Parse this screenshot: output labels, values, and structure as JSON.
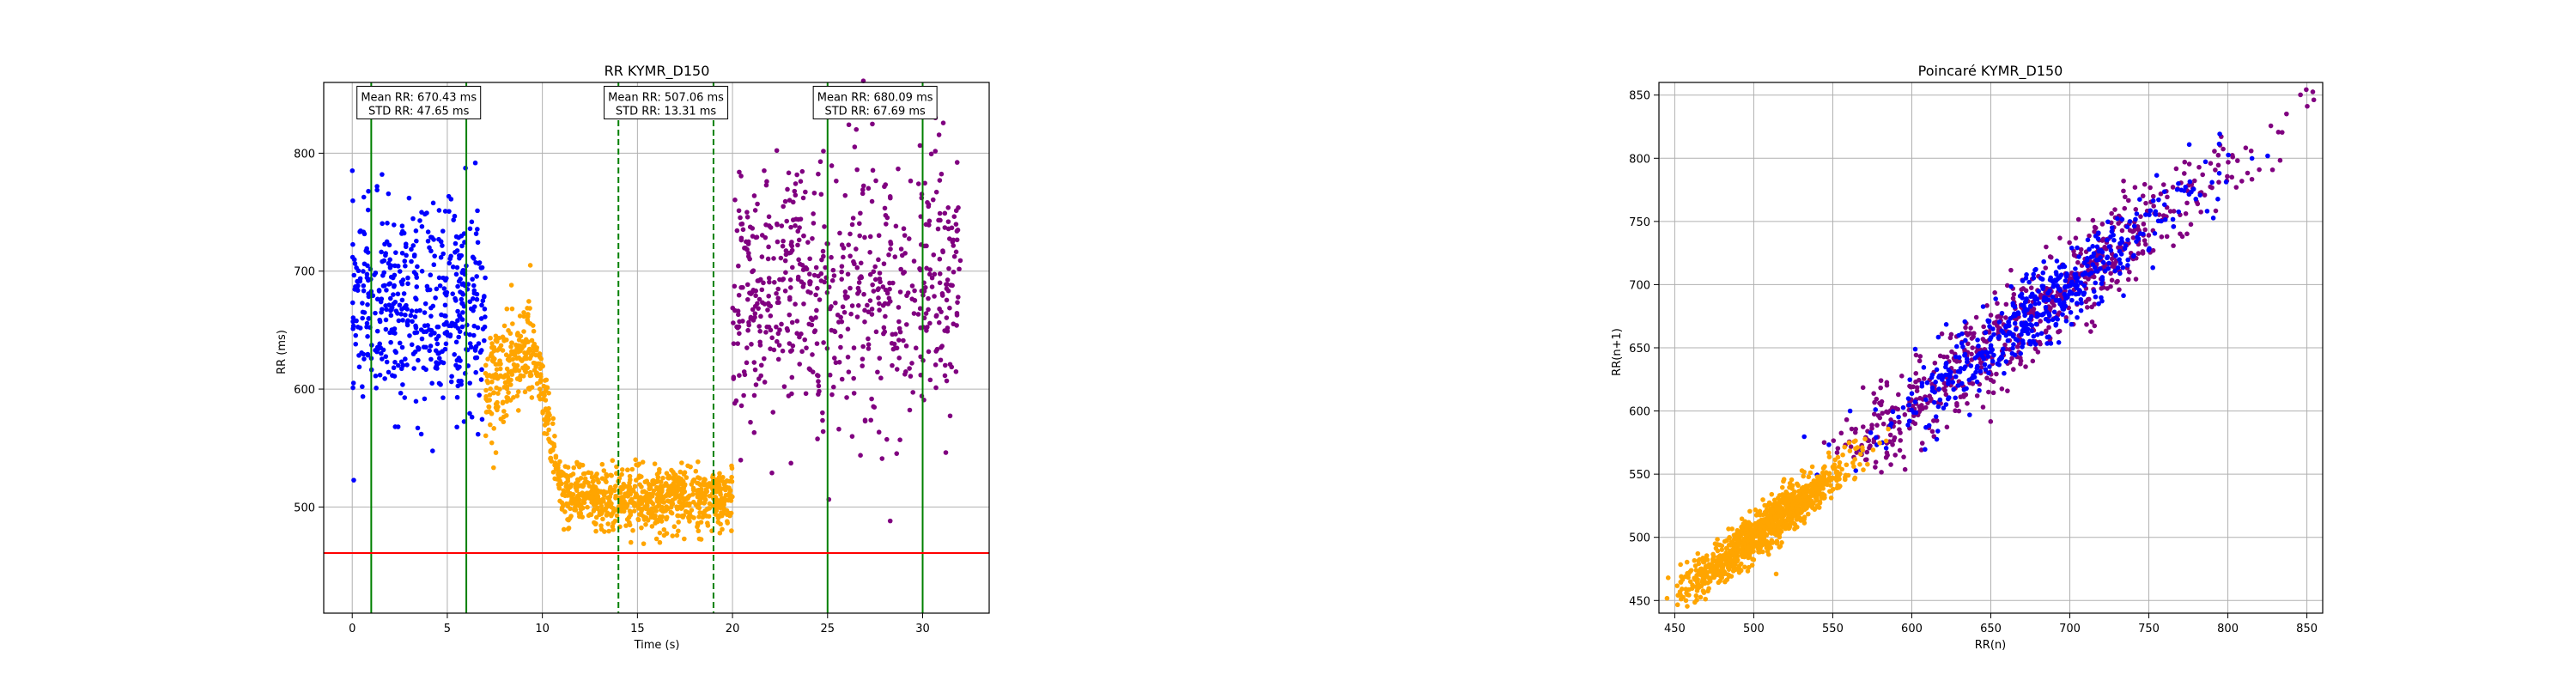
{
  "chart_data": [
    {
      "type": "scatter",
      "title": "RR KYMR_D150",
      "xlabel": "Time (s)",
      "ylabel": "RR (ms)",
      "xlim": [
        -1.5,
        33.5
      ],
      "ylim": [
        410,
        860
      ],
      "xticks": [
        "0",
        "5",
        "10",
        "15",
        "20",
        "25",
        "30"
      ],
      "yticks": [
        "500",
        "600",
        "700",
        "800"
      ],
      "grid": true,
      "colors": {
        "baseline": "#0000ff",
        "exposure": "#ffa500",
        "recovery": "#800080",
        "window": "#008000",
        "threshold": "#ff0000"
      },
      "series": [
        {
          "color": "#0000ff",
          "t_range": [
            0,
            7
          ],
          "mean": 670,
          "std": 47
        },
        {
          "color": "#ffa500",
          "t_range": [
            7,
            20
          ],
          "segments": [
            [
              7,
              9.5,
              610,
              660
            ],
            [
              9.5,
              11,
              650,
              510
            ],
            [
              11,
              20,
              507,
              507
            ]
          ]
        },
        {
          "color": "#800080",
          "t_range": [
            20,
            32
          ],
          "mean": 680,
          "std": 68
        }
      ],
      "vlines": [
        {
          "x": 1,
          "style": "solid",
          "color": "#008000"
        },
        {
          "x": 6,
          "style": "solid",
          "color": "#008000"
        },
        {
          "x": 14,
          "style": "dashed",
          "color": "#008000"
        },
        {
          "x": 19,
          "style": "dashed",
          "color": "#008000"
        },
        {
          "x": 25,
          "style": "solid",
          "color": "#008000"
        },
        {
          "x": 30,
          "style": "solid",
          "color": "#008000"
        }
      ],
      "hline": {
        "y": 461,
        "color": "#ff0000"
      },
      "annotations": [
        {
          "x": 3.5,
          "y": 840,
          "line1": "Mean RR: 670.43 ms",
          "line2": "STD RR: 47.65 ms"
        },
        {
          "x": 16.5,
          "y": 840,
          "line1": "Mean RR: 507.06 ms",
          "line2": "STD RR: 13.31 ms"
        },
        {
          "x": 27.5,
          "y": 840,
          "line1": "Mean RR: 680.09 ms",
          "line2": "STD RR: 67.69 ms"
        }
      ]
    },
    {
      "type": "scatter",
      "title": "Poincaré KYMR_D150",
      "xlabel": "RR(n)",
      "ylabel": "RR(n+1)",
      "xlim": [
        440,
        860
      ],
      "ylim": [
        440,
        860
      ],
      "xticks": [
        "450",
        "500",
        "550",
        "600",
        "650",
        "700",
        "750",
        "800",
        "850"
      ],
      "yticks": [
        "450",
        "500",
        "550",
        "600",
        "650",
        "700",
        "750",
        "800",
        "850"
      ],
      "grid": true,
      "series": [
        {
          "color": "#800080",
          "center": [
            680,
            680
          ],
          "spread_along": 70,
          "spread_across": 18
        },
        {
          "color": "#0000ff",
          "center": [
            680,
            680
          ],
          "spread_along": 48,
          "spread_across": 14
        },
        {
          "color": "#ffa500",
          "center": [
            507,
            507
          ],
          "spread_along": 25,
          "spread_across": 9
        }
      ]
    }
  ]
}
